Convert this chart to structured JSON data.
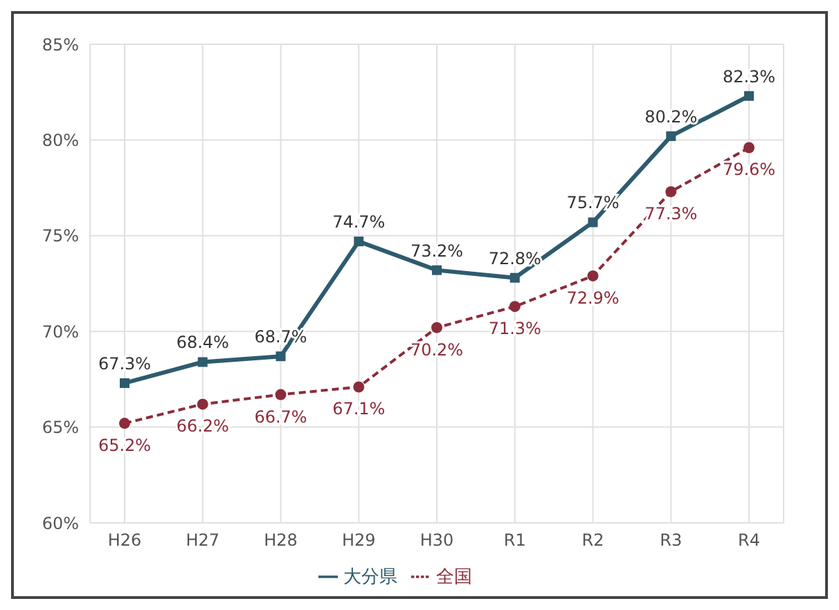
{
  "chart_data": {
    "type": "line",
    "categories": [
      "H26",
      "H27",
      "H28",
      "H29",
      "H30",
      "R1",
      "R2",
      "R3",
      "R4"
    ],
    "series": [
      {
        "name": "大分県",
        "color": "#2e5b6e",
        "line_style": "solid",
        "marker": "square",
        "values": [
          67.3,
          68.4,
          68.7,
          74.7,
          73.2,
          72.8,
          75.7,
          80.2,
          82.3
        ],
        "value_labels": [
          "67.3%",
          "68.4%",
          "68.7%",
          "74.7%",
          "73.2%",
          "72.8%",
          "75.7%",
          "80.2%",
          "82.3%"
        ]
      },
      {
        "name": "全国",
        "color": "#8b2c3a",
        "line_style": "dashed",
        "marker": "circle",
        "values": [
          65.2,
          66.2,
          66.7,
          67.1,
          70.2,
          71.3,
          72.9,
          77.3,
          79.6
        ],
        "value_labels": [
          "65.2%",
          "66.2%",
          "66.7%",
          "67.1%",
          "70.2%",
          "71.3%",
          "72.9%",
          "77.3%",
          "79.6%"
        ]
      }
    ],
    "ylim": [
      60,
      85
    ],
    "yticks": [
      {
        "value": 60,
        "label": "60%"
      },
      {
        "value": 65,
        "label": "65%"
      },
      {
        "value": 70,
        "label": "70%"
      },
      {
        "value": 75,
        "label": "75%"
      },
      {
        "value": 80,
        "label": "80%"
      },
      {
        "value": 85,
        "label": "85%"
      }
    ],
    "grid": true,
    "legend": "bottom"
  }
}
